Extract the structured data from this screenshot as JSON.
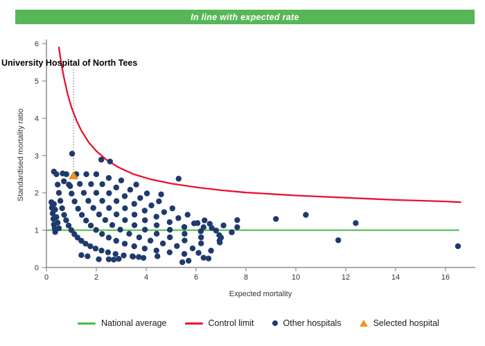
{
  "header": {
    "title": "In line with expected rate",
    "bg_color": "#57B757"
  },
  "chart_data": {
    "type": "scatter",
    "subtype": "funnel-plot",
    "xlabel": "Expected mortality",
    "ylabel": "Standardised mortality ratio",
    "xlim": [
      0,
      17.2
    ],
    "ylim": [
      0,
      6
    ],
    "x_ticks": [
      "0",
      "2",
      "4",
      "6",
      "8",
      "10",
      "12",
      "14",
      "16"
    ],
    "x_tick_values": [
      0,
      2,
      4,
      6,
      8,
      10,
      12,
      14,
      16
    ],
    "y_ticks": [
      "0",
      "1",
      "2",
      "3",
      "4",
      "5",
      "6"
    ],
    "y_tick_values": [
      0,
      1,
      2,
      3,
      4,
      5,
      6
    ],
    "grid": "off",
    "legend_position": "bottom",
    "colors": {
      "axis": "#8c8c8c",
      "tick_text": "#333333",
      "national_average": "#4DB848",
      "control_limit": "#E8112D",
      "other_hospitals": "#1F3A6E",
      "selected_hospital": "#F2951F",
      "annotation_line": "#9a9a9a"
    },
    "national_average": {
      "label": "National average",
      "value": 1.0,
      "x_start": 0,
      "x_end": 16.55
    },
    "control_limit": {
      "label": "Control limit",
      "points": [
        [
          0.5,
          5.9
        ],
        [
          0.6,
          5.45
        ],
        [
          0.7,
          5.1
        ],
        [
          0.85,
          4.65
        ],
        [
          1.0,
          4.3
        ],
        [
          1.2,
          3.95
        ],
        [
          1.4,
          3.67
        ],
        [
          1.7,
          3.35
        ],
        [
          2.0,
          3.12
        ],
        [
          2.4,
          2.89
        ],
        [
          2.9,
          2.68
        ],
        [
          3.5,
          2.5
        ],
        [
          4.2,
          2.36
        ],
        [
          5.0,
          2.25
        ],
        [
          6.0,
          2.15
        ],
        [
          7.0,
          2.07
        ],
        [
          8.0,
          2.01
        ],
        [
          9.0,
          1.97
        ],
        [
          10.0,
          1.93
        ],
        [
          11.0,
          1.9
        ],
        [
          12.0,
          1.87
        ],
        [
          13.0,
          1.84
        ],
        [
          14.0,
          1.81
        ],
        [
          15.0,
          1.79
        ],
        [
          16.0,
          1.77
        ],
        [
          16.6,
          1.75
        ]
      ]
    },
    "selected_hospital": {
      "label": "Selected hospital",
      "name": "University Hospital of North Tees",
      "x": 1.06,
      "y": 2.47
    },
    "other_hospitals": {
      "label": "Other hospitals",
      "observed_death_bands": [
        {
          "observed": 1,
          "expected": [
            0.4,
            0.45,
            0.5,
            0.56,
            0.63,
            0.71,
            0.79,
            0.89,
            1.0,
            1.12,
            1.25,
            1.4,
            1.57,
            1.76,
            1.97,
            2.21,
            2.47,
            2.77,
            3.1,
            3.47,
            3.89
          ]
        },
        {
          "observed": 2,
          "expected": [
            0.8,
            0.9,
            1.01,
            1.13,
            1.27,
            1.42,
            1.59,
            1.78,
            1.99,
            2.23,
            2.5,
            2.8,
            3.14,
            3.52,
            3.94,
            4.41,
            4.94,
            5.53
          ]
        },
        {
          "observed": 3,
          "expected": [
            1.2,
            1.34,
            1.5,
            1.68,
            1.88,
            2.11,
            2.36,
            2.64,
            2.96,
            3.32,
            3.72,
            4.17,
            4.67,
            5.23,
            5.86
          ]
        },
        {
          "observed": 4,
          "expected": [
            1.6,
            1.79,
            2.0,
            2.24,
            2.51,
            2.81,
            3.15,
            3.53,
            3.95,
            4.42,
            4.95,
            5.54,
            6.2
          ]
        },
        {
          "observed": 5,
          "expected": [
            2.0,
            2.24,
            2.51,
            2.81,
            3.15,
            3.53,
            3.95,
            4.42,
            4.95,
            5.54,
            6.2,
            6.94
          ]
        },
        {
          "observed": 6,
          "expected": [
            2.5,
            2.8,
            3.14,
            3.52,
            3.94,
            4.41,
            4.94,
            5.53,
            6.19,
            6.93
          ]
        },
        {
          "observed": 7,
          "expected": [
            3.0,
            3.36,
            3.76,
            4.21,
            4.72,
            5.29,
            5.92,
            6.63,
            7.43
          ]
        },
        {
          "observed": 8,
          "expected": [
            3.6,
            4.03,
            4.51,
            5.05,
            5.66,
            6.34,
            7.1
          ]
        }
      ],
      "points": [
        [
          0.3,
          2.57
        ],
        [
          0.65,
          2.52
        ],
        [
          0.7,
          2.31
        ],
        [
          0.95,
          2.18
        ],
        [
          1.03,
          3.05
        ],
        [
          2.2,
          2.89
        ],
        [
          2.55,
          2.84
        ],
        [
          5.3,
          2.38
        ],
        [
          4.6,
          1.96
        ],
        [
          0.2,
          1.75
        ],
        [
          0.22,
          1.6
        ],
        [
          0.25,
          1.45
        ],
        [
          0.28,
          1.3
        ],
        [
          0.3,
          1.15
        ],
        [
          0.33,
          1.05
        ],
        [
          0.35,
          0.95
        ],
        [
          0.3,
          1.7
        ],
        [
          0.35,
          1.55
        ],
        [
          0.4,
          1.35
        ],
        [
          0.45,
          1.2
        ],
        [
          0.5,
          1.05
        ],
        [
          0.25,
          1.68
        ],
        [
          1.4,
          0.33
        ],
        [
          1.65,
          0.3
        ],
        [
          2.1,
          0.22
        ],
        [
          2.5,
          0.22
        ],
        [
          2.7,
          0.21
        ],
        [
          2.9,
          0.23
        ],
        [
          3.45,
          0.3
        ],
        [
          3.7,
          0.28
        ],
        [
          4.45,
          0.3
        ],
        [
          5.45,
          0.14
        ],
        [
          5.7,
          0.18
        ],
        [
          6.06,
          1.19
        ],
        [
          6.3,
          1.08
        ],
        [
          6.55,
          1.17
        ],
        [
          6.8,
          0.99
        ],
        [
          7.0,
          0.8
        ],
        [
          6.95,
          0.67
        ],
        [
          6.6,
          0.45
        ],
        [
          6.1,
          0.39
        ],
        [
          6.3,
          0.26
        ],
        [
          6.5,
          0.24
        ],
        [
          7.65,
          1.27
        ],
        [
          7.65,
          1.08
        ],
        [
          9.2,
          1.3
        ],
        [
          10.4,
          1.41
        ],
        [
          11.7,
          0.73
        ],
        [
          12.4,
          1.19
        ],
        [
          16.5,
          0.57
        ]
      ]
    }
  },
  "legend": {
    "items": [
      {
        "label": "National average"
      },
      {
        "label": "Control limit"
      },
      {
        "label": "Other hospitals"
      },
      {
        "label": "Selected hospital"
      }
    ]
  }
}
